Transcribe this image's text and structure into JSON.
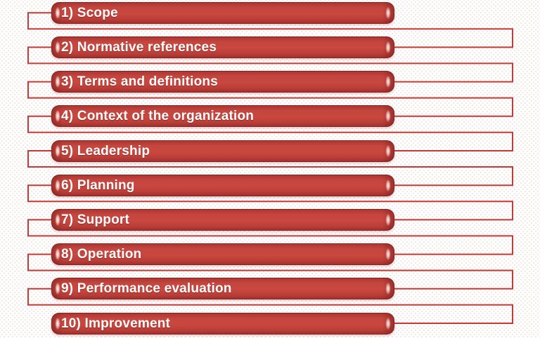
{
  "diagram": {
    "type": "numbered-clause-list",
    "items": [
      {
        "label": "1) Scope"
      },
      {
        "label": "2) Normative references"
      },
      {
        "label": "3) Terms and definitions"
      },
      {
        "label": "4) Context of the organization"
      },
      {
        "label": "5) Leadership"
      },
      {
        "label": "6) Planning"
      },
      {
        "label": "7) Support"
      },
      {
        "label": "8) Operation"
      },
      {
        "label": "9) Performance evaluation"
      },
      {
        "label": "10) Improvement"
      }
    ],
    "colors": {
      "bar_red": "#c2423e",
      "bar_dark_rim": "#9d2f2c",
      "bar_border": "#8e2a28",
      "connector_line": "#c33b36",
      "text": "#ffffff",
      "cap_highlight": "#ffffff",
      "background": "#ffffff"
    }
  }
}
